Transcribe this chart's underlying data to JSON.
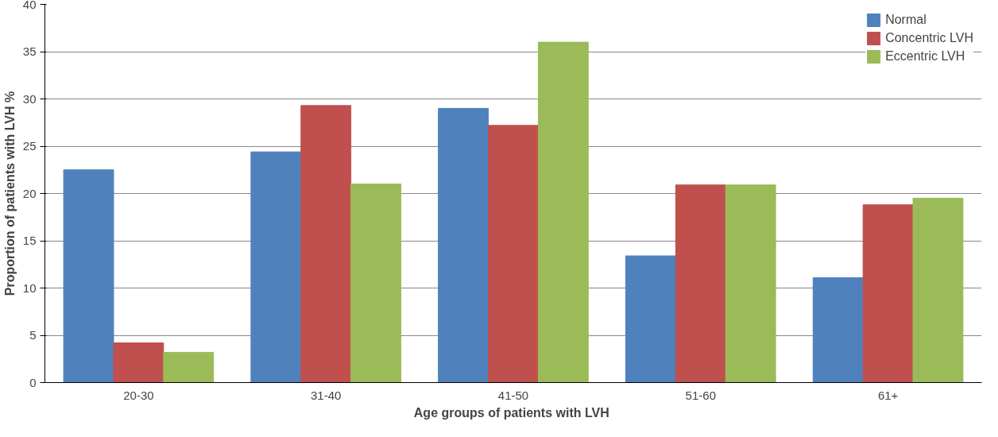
{
  "chart_data": {
    "type": "bar",
    "xlabel": "Age  groups of patients with LVH",
    "ylabel": "Proportion of patients with LVH %",
    "categories": [
      "20-30",
      "31-40",
      "41-50",
      "51-60",
      "61+"
    ],
    "series": [
      {
        "name": "Normal",
        "color": "#4f81bd",
        "values": [
          22.5,
          24.4,
          29,
          13.4,
          11.1
        ]
      },
      {
        "name": "Concentric LVH",
        "color": "#c0504d",
        "values": [
          4.2,
          29.3,
          27.2,
          20.9,
          18.8
        ]
      },
      {
        "name": "Eccentric LVH",
        "color": "#9bbb59",
        "values": [
          3.2,
          21,
          36,
          20.9,
          19.5
        ]
      }
    ],
    "ylim": [
      0,
      40
    ],
    "yticks": [
      0,
      5,
      10,
      15,
      20,
      25,
      30,
      35,
      40
    ],
    "grid": "y",
    "legend": "top right"
  }
}
